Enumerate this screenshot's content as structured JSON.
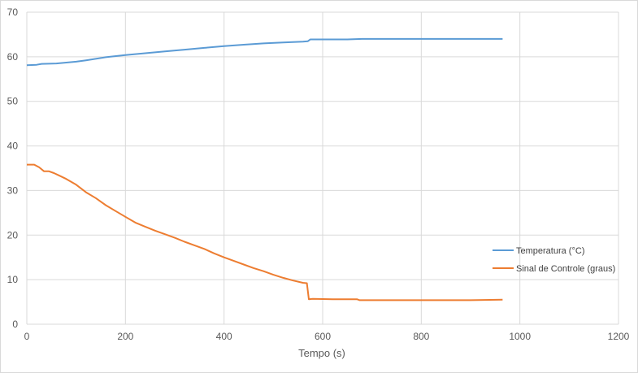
{
  "chart_data": {
    "type": "line",
    "title": "",
    "xlabel": "Tempo (s)",
    "ylabel": "",
    "xlim": [
      0,
      1200
    ],
    "ylim": [
      0,
      70
    ],
    "xticks": [
      0,
      200,
      400,
      600,
      800,
      1000,
      1200
    ],
    "yticks": [
      0,
      10,
      20,
      30,
      40,
      50,
      60,
      70
    ],
    "grid": true,
    "legend_position": "right",
    "series": [
      {
        "name": "Temperatura (°C)",
        "color": "#5b9bd5",
        "x": [
          0,
          20,
          30,
          60,
          100,
          120,
          160,
          200,
          240,
          280,
          320,
          360,
          400,
          440,
          480,
          520,
          560,
          570,
          575,
          600,
          650,
          680,
          700,
          750,
          800,
          850,
          900,
          965
        ],
        "y": [
          58.1,
          58.2,
          58.4,
          58.5,
          58.9,
          59.2,
          59.9,
          60.4,
          60.8,
          61.2,
          61.6,
          62.0,
          62.4,
          62.7,
          63.0,
          63.2,
          63.4,
          63.5,
          63.9,
          63.9,
          63.9,
          64.0,
          64.0,
          64.0,
          64.0,
          64.0,
          64.0,
          64.0
        ]
      },
      {
        "name": "Sinal de Controle (graus)",
        "color": "#ed7d31",
        "x": [
          0,
          15,
          25,
          35,
          45,
          55,
          65,
          80,
          100,
          120,
          140,
          160,
          180,
          200,
          220,
          240,
          260,
          280,
          300,
          320,
          340,
          360,
          380,
          400,
          420,
          440,
          460,
          480,
          500,
          520,
          540,
          560,
          568,
          572,
          580,
          620,
          670,
          675,
          700,
          750,
          800,
          850,
          900,
          965
        ],
        "y": [
          35.8,
          35.8,
          35.2,
          34.3,
          34.3,
          33.9,
          33.4,
          32.6,
          31.3,
          29.6,
          28.3,
          26.7,
          25.4,
          24.1,
          22.8,
          21.9,
          21.0,
          20.2,
          19.4,
          18.5,
          17.7,
          16.9,
          15.9,
          15.0,
          14.2,
          13.4,
          12.6,
          11.9,
          11.1,
          10.4,
          9.8,
          9.3,
          9.2,
          5.6,
          5.7,
          5.6,
          5.6,
          5.4,
          5.4,
          5.4,
          5.4,
          5.4,
          5.4,
          5.5
        ]
      }
    ]
  }
}
